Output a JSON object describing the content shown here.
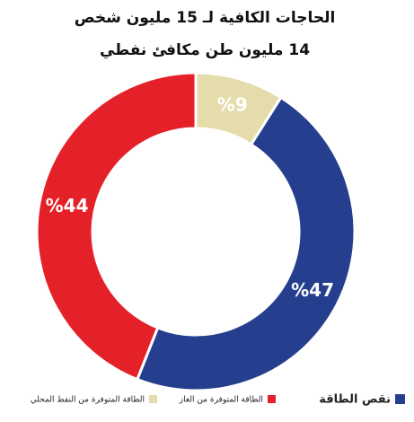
{
  "chart_data": {
    "type": "pie",
    "donut": true,
    "title": "الحاجات الكافية لـ 15 مليون شخص",
    "subtitle": "14 مليون طن مكافئ نفطي",
    "categories": [
      "الطاقة المتوفرة من النفط المحلي",
      "نقص الطاقة",
      "الطاقة المتوفرة من الغاز"
    ],
    "values": [
      9,
      47,
      44
    ],
    "value_labels": [
      "%9",
      "%47",
      "%44"
    ],
    "colors": [
      "#e5dcab",
      "#253f8e",
      "#e42129"
    ]
  }
}
